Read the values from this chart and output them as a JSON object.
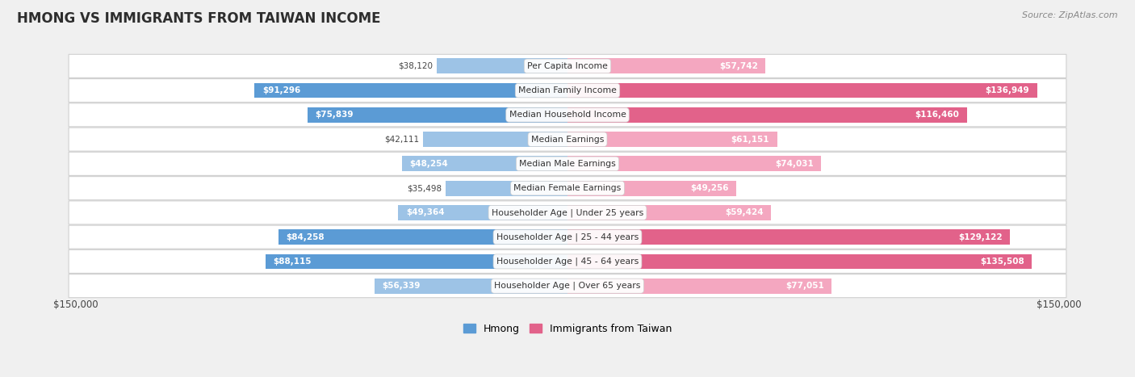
{
  "title": "HMONG VS IMMIGRANTS FROM TAIWAN INCOME",
  "source": "Source: ZipAtlas.com",
  "categories": [
    "Per Capita Income",
    "Median Family Income",
    "Median Household Income",
    "Median Earnings",
    "Median Male Earnings",
    "Median Female Earnings",
    "Householder Age | Under 25 years",
    "Householder Age | 25 - 44 years",
    "Householder Age | 45 - 64 years",
    "Householder Age | Over 65 years"
  ],
  "hmong_values": [
    38120,
    91296,
    75839,
    42111,
    48254,
    35498,
    49364,
    84258,
    88115,
    56339
  ],
  "taiwan_values": [
    57742,
    136949,
    116460,
    61151,
    74031,
    49256,
    59424,
    129122,
    135508,
    77051
  ],
  "hmong_labels": [
    "$38,120",
    "$91,296",
    "$75,839",
    "$42,111",
    "$48,254",
    "$35,498",
    "$49,364",
    "$84,258",
    "$88,115",
    "$56,339"
  ],
  "taiwan_labels": [
    "$57,742",
    "$136,949",
    "$116,460",
    "$61,151",
    "$74,031",
    "$49,256",
    "$59,424",
    "$129,122",
    "$135,508",
    "$77,051"
  ],
  "max_value": 150000,
  "hmong_color_strong": "#5b9bd5",
  "hmong_color_light": "#9dc3e6",
  "taiwan_color_strong": "#e2628a",
  "taiwan_color_light": "#f4a7c0",
  "background_color": "#f0f0f0",
  "row_color": "#ffffff",
  "legend_hmong": "Hmong",
  "legend_taiwan": "Immigrants from Taiwan",
  "xlabel_left": "$150,000",
  "xlabel_right": "$150,000",
  "hmong_strong_threshold": 75000,
  "taiwan_strong_threshold": 100000
}
